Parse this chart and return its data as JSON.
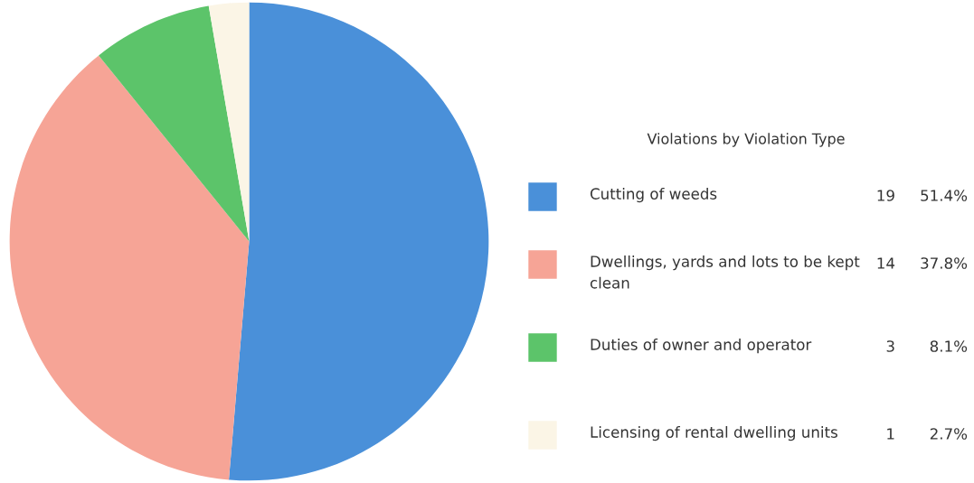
{
  "chart_data": {
    "type": "pie",
    "legend_title": "Violations by Violation Type",
    "categories": [
      "Cutting of weeds",
      "Dwellings, yards and lots to be kept clean",
      "Duties of owner and operator",
      "Licensing of rental dwelling units"
    ],
    "values": [
      19,
      14,
      3,
      1
    ],
    "annotations": [
      "51.4%",
      "37.8%",
      "8.1%",
      "2.7%"
    ],
    "data_labels": true,
    "colors": [
      "#4a90d9",
      "#f6a496",
      "#5cc46a",
      "#fbf5e6"
    ],
    "legend": "right"
  }
}
